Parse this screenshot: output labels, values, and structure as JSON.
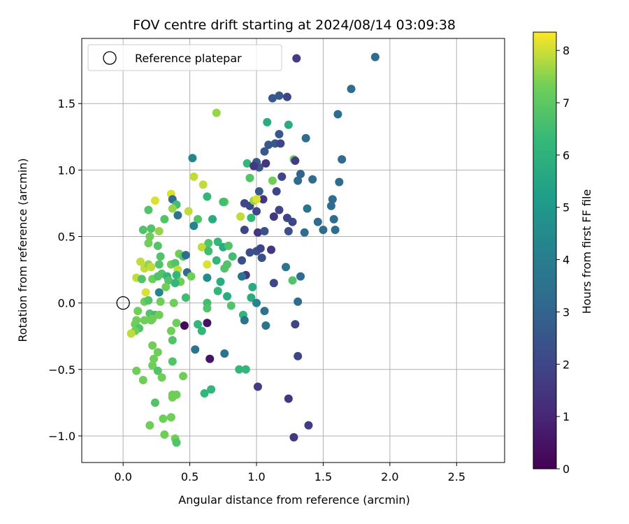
{
  "chart_data": {
    "type": "scatter",
    "title": "FOV centre drift starting at 2024/08/14 03:09:38",
    "xlabel": "Angular distance from reference (arcmin)",
    "ylabel": "Rotation from reference (arcmin)",
    "xlim": [
      -0.31,
      2.86
    ],
    "ylim": [
      -1.2,
      1.99
    ],
    "xticks": [
      0.0,
      0.5,
      1.0,
      1.5,
      2.0,
      2.5
    ],
    "xtick_labels": [
      "0.0",
      "0.5",
      "1.0",
      "1.5",
      "2.0",
      "2.5"
    ],
    "yticks": [
      -1.0,
      -0.5,
      0.0,
      0.5,
      1.0,
      1.5
    ],
    "ytick_labels": [
      "−1.0",
      "−0.5",
      "0.0",
      "0.5",
      "1.0",
      "1.5"
    ],
    "grid": true,
    "legend": {
      "location": "upper-left",
      "entries": [
        "Reference platepar"
      ]
    },
    "reference_point": {
      "x": 0.0,
      "y": 0.0
    },
    "colorbar": {
      "label": "Hours from first FF file",
      "colormap": "viridis",
      "range": [
        0,
        8.35
      ],
      "ticks": [
        0,
        1,
        2,
        3,
        4,
        5,
        6,
        7,
        8
      ],
      "tick_labels": [
        "0",
        "1",
        "2",
        "3",
        "4",
        "5",
        "6",
        "7",
        "8"
      ]
    },
    "series": [
      {
        "name": "drift",
        "color_by": "hours",
        "points": [
          [
            1.3,
            1.84,
            1.7
          ],
          [
            1.89,
            1.85,
            3.3
          ],
          [
            1.71,
            1.61,
            3.3
          ],
          [
            1.12,
            1.54,
            2.6
          ],
          [
            1.17,
            1.56,
            2.6
          ],
          [
            1.23,
            1.55,
            2.0
          ],
          [
            1.08,
            1.36,
            5.8
          ],
          [
            1.24,
            1.34,
            5.8
          ],
          [
            0.7,
            1.43,
            7.6
          ],
          [
            1.61,
            1.42,
            3.3
          ],
          [
            1.17,
            1.27,
            2.6
          ],
          [
            1.37,
            1.24,
            3.3
          ],
          [
            0.52,
            1.09,
            4.3
          ],
          [
            1.14,
            1.2,
            2.6
          ],
          [
            1.18,
            1.2,
            2.0
          ],
          [
            1.09,
            1.19,
            2.6
          ],
          [
            1.06,
            1.14,
            2.6
          ],
          [
            1.28,
            1.08,
            7.3
          ],
          [
            1.29,
            1.07,
            1.7
          ],
          [
            0.93,
            1.05,
            6.2
          ],
          [
            1.0,
            1.06,
            2.6
          ],
          [
            1.07,
            1.05,
            1.5
          ],
          [
            1.02,
            1.02,
            2.6
          ],
          [
            0.98,
            1.03,
            1.5
          ],
          [
            1.64,
            1.08,
            3.3
          ],
          [
            1.19,
            0.95,
            2.0
          ],
          [
            1.33,
            0.97,
            3.0
          ],
          [
            1.31,
            0.92,
            3.3
          ],
          [
            1.42,
            0.93,
            3.3
          ],
          [
            1.62,
            0.91,
            3.3
          ],
          [
            0.95,
            0.94,
            6.8
          ],
          [
            1.12,
            0.92,
            7.3
          ],
          [
            0.53,
            0.95,
            7.9
          ],
          [
            0.6,
            0.89,
            7.9
          ],
          [
            1.02,
            0.84,
            2.6
          ],
          [
            1.15,
            0.84,
            2.0
          ],
          [
            0.63,
            0.8,
            6.2
          ],
          [
            0.36,
            0.82,
            8.1
          ],
          [
            0.24,
            0.77,
            8.1
          ],
          [
            0.37,
            0.78,
            3.3
          ],
          [
            0.4,
            0.74,
            6.5
          ],
          [
            0.76,
            0.76,
            7.3
          ],
          [
            0.75,
            0.76,
            6.5
          ],
          [
            1.05,
            0.78,
            1.5
          ],
          [
            0.91,
            0.75,
            2.0
          ],
          [
            0.95,
            0.73,
            2.0
          ],
          [
            0.98,
            0.77,
            7.6
          ],
          [
            1.0,
            0.78,
            8.1
          ],
          [
            1.57,
            0.78,
            3.3
          ],
          [
            1.56,
            0.73,
            3.3
          ],
          [
            0.19,
            0.7,
            6.8
          ],
          [
            0.49,
            0.69,
            7.9
          ],
          [
            0.37,
            0.71,
            7.6
          ],
          [
            1.17,
            0.7,
            2.0
          ],
          [
            1.0,
            0.69,
            2.0
          ],
          [
            1.38,
            0.71,
            3.6
          ],
          [
            1.13,
            0.65,
            1.5
          ],
          [
            0.41,
            0.66,
            3.6
          ],
          [
            0.31,
            0.63,
            6.8
          ],
          [
            0.56,
            0.63,
            6.8
          ],
          [
            0.67,
            0.63,
            5.8
          ],
          [
            0.88,
            0.65,
            7.9
          ],
          [
            0.96,
            0.64,
            6.2
          ],
          [
            1.23,
            0.64,
            2.0
          ],
          [
            1.27,
            0.61,
            2.0
          ],
          [
            1.46,
            0.61,
            3.3
          ],
          [
            1.58,
            0.63,
            3.3
          ],
          [
            0.15,
            0.55,
            6.8
          ],
          [
            0.21,
            0.56,
            6.8
          ],
          [
            0.27,
            0.54,
            7.6
          ],
          [
            0.53,
            0.58,
            4.3
          ],
          [
            0.91,
            0.55,
            2.0
          ],
          [
            1.01,
            0.53,
            1.5
          ],
          [
            1.06,
            0.54,
            2.3
          ],
          [
            1.24,
            0.54,
            2.3
          ],
          [
            1.36,
            0.53,
            3.3
          ],
          [
            1.5,
            0.55,
            3.3
          ],
          [
            1.59,
            0.55,
            3.3
          ],
          [
            0.2,
            0.5,
            7.3
          ],
          [
            0.19,
            0.45,
            7.3
          ],
          [
            0.26,
            0.43,
            6.8
          ],
          [
            0.62,
            0.42,
            6.8
          ],
          [
            0.64,
            0.45,
            6.8
          ],
          [
            0.71,
            0.46,
            6.2
          ],
          [
            0.75,
            0.42,
            5.8
          ],
          [
            0.79,
            0.43,
            6.8
          ],
          [
            0.95,
            0.38,
            2.3
          ],
          [
            1.0,
            0.39,
            2.3
          ],
          [
            1.03,
            0.41,
            2.0
          ],
          [
            1.04,
            0.34,
            2.3
          ],
          [
            1.11,
            0.4,
            1.5
          ],
          [
            0.28,
            0.35,
            6.8
          ],
          [
            0.42,
            0.37,
            7.3
          ],
          [
            0.45,
            0.35,
            6.8
          ],
          [
            0.47,
            0.36,
            3.3
          ],
          [
            0.59,
            0.42,
            7.9
          ],
          [
            0.64,
            0.39,
            6.5
          ],
          [
            0.7,
            0.32,
            6.2
          ],
          [
            0.82,
            0.35,
            6.5
          ],
          [
            0.89,
            0.32,
            2.3
          ],
          [
            0.78,
            0.29,
            6.8
          ],
          [
            0.13,
            0.31,
            7.9
          ],
          [
            0.16,
            0.26,
            7.9
          ],
          [
            0.19,
            0.29,
            7.6
          ],
          [
            0.21,
            0.27,
            7.9
          ],
          [
            0.27,
            0.29,
            6.8
          ],
          [
            0.36,
            0.29,
            7.3
          ],
          [
            0.39,
            0.3,
            6.8
          ],
          [
            0.41,
            0.25,
            7.9
          ],
          [
            0.48,
            0.23,
            3.3
          ],
          [
            0.63,
            0.29,
            8.1
          ],
          [
            0.76,
            0.26,
            6.8
          ],
          [
            0.92,
            0.21,
            1.5
          ],
          [
            1.22,
            0.27,
            3.6
          ],
          [
            0.1,
            0.19,
            7.9
          ],
          [
            0.14,
            0.18,
            6.8
          ],
          [
            0.22,
            0.18,
            7.3
          ],
          [
            0.26,
            0.2,
            6.8
          ],
          [
            0.29,
            0.22,
            6.8
          ],
          [
            0.33,
            0.2,
            6.2
          ],
          [
            0.34,
            0.17,
            6.8
          ],
          [
            0.4,
            0.21,
            6.2
          ],
          [
            0.43,
            0.16,
            7.3
          ],
          [
            0.51,
            0.2,
            7.3
          ],
          [
            0.63,
            0.19,
            4.6
          ],
          [
            0.73,
            0.16,
            5.8
          ],
          [
            0.89,
            0.2,
            3.6
          ],
          [
            0.97,
            0.12,
            5.8
          ],
          [
            1.13,
            0.15,
            2.0
          ],
          [
            1.27,
            0.17,
            6.8
          ],
          [
            1.33,
            0.2,
            3.3
          ],
          [
            0.17,
            0.08,
            8.1
          ],
          [
            0.27,
            0.08,
            4.3
          ],
          [
            0.39,
            0.15,
            6.2
          ],
          [
            0.32,
            0.12,
            7.3
          ],
          [
            0.71,
            0.09,
            6.2
          ],
          [
            0.78,
            0.05,
            5.8
          ],
          [
            0.96,
            0.04,
            5.8
          ],
          [
            0.47,
            0.04,
            6.5
          ],
          [
            0.63,
            0.0,
            6.5
          ],
          [
            0.81,
            -0.02,
            6.8
          ],
          [
            1.0,
            0.0,
            4.3
          ],
          [
            0.16,
            0.01,
            7.3
          ],
          [
            0.19,
            0.02,
            6.8
          ],
          [
            0.28,
            0.01,
            7.3
          ],
          [
            0.38,
            0.0,
            7.3
          ],
          [
            1.31,
            0.01,
            3.3
          ],
          [
            0.11,
            -0.06,
            7.3
          ],
          [
            0.2,
            -0.08,
            6.8
          ],
          [
            0.24,
            -0.09,
            6.5
          ],
          [
            0.27,
            -0.09,
            7.3
          ],
          [
            0.22,
            -0.12,
            7.3
          ],
          [
            0.63,
            -0.04,
            6.8
          ],
          [
            1.06,
            -0.06,
            3.6
          ],
          [
            0.9,
            -0.09,
            6.2
          ],
          [
            0.1,
            -0.13,
            7.3
          ],
          [
            0.16,
            -0.13,
            7.3
          ],
          [
            0.21,
            -0.13,
            7.3
          ],
          [
            0.09,
            -0.16,
            7.3
          ],
          [
            0.12,
            -0.19,
            6.8
          ],
          [
            0.4,
            -0.15,
            7.3
          ],
          [
            0.46,
            -0.17,
            0.2
          ],
          [
            0.56,
            -0.16,
            6.2
          ],
          [
            0.59,
            -0.21,
            6.2
          ],
          [
            0.63,
            -0.15,
            0.5
          ],
          [
            0.91,
            -0.13,
            3.6
          ],
          [
            1.07,
            -0.17,
            3.6
          ],
          [
            1.29,
            -0.16,
            2.0
          ],
          [
            0.09,
            -0.21,
            7.3
          ],
          [
            0.06,
            -0.23,
            7.9
          ],
          [
            0.36,
            -0.21,
            7.3
          ],
          [
            0.37,
            -0.28,
            6.8
          ],
          [
            0.22,
            -0.32,
            7.3
          ],
          [
            0.26,
            -0.37,
            7.3
          ],
          [
            0.23,
            -0.42,
            7.3
          ],
          [
            0.54,
            -0.35,
            3.6
          ],
          [
            0.65,
            -0.42,
            0.5
          ],
          [
            0.76,
            -0.38,
            3.6
          ],
          [
            0.37,
            -0.44,
            6.8
          ],
          [
            1.31,
            -0.4,
            2.0
          ],
          [
            0.22,
            -0.47,
            7.3
          ],
          [
            0.1,
            -0.51,
            7.3
          ],
          [
            0.26,
            -0.51,
            6.8
          ],
          [
            0.87,
            -0.5,
            6.2
          ],
          [
            0.92,
            -0.5,
            6.2
          ],
          [
            0.15,
            -0.58,
            7.3
          ],
          [
            0.29,
            -0.56,
            7.3
          ],
          [
            0.45,
            -0.55,
            7.3
          ],
          [
            1.01,
            -0.63,
            1.7
          ],
          [
            0.66,
            -0.65,
            6.2
          ],
          [
            0.61,
            -0.68,
            6.2
          ],
          [
            0.37,
            -0.69,
            7.3
          ],
          [
            0.4,
            -0.69,
            7.3
          ],
          [
            0.37,
            -0.71,
            7.3
          ],
          [
            1.24,
            -0.72,
            1.5
          ],
          [
            0.24,
            -0.75,
            6.8
          ],
          [
            0.3,
            -0.87,
            7.3
          ],
          [
            0.36,
            -0.86,
            7.3
          ],
          [
            0.2,
            -0.92,
            7.3
          ],
          [
            1.39,
            -0.92,
            1.7
          ],
          [
            0.31,
            -0.99,
            7.3
          ],
          [
            0.39,
            -1.02,
            7.3
          ],
          [
            0.4,
            -1.05,
            6.8
          ],
          [
            1.28,
            -1.01,
            1.5
          ]
        ]
      }
    ]
  }
}
